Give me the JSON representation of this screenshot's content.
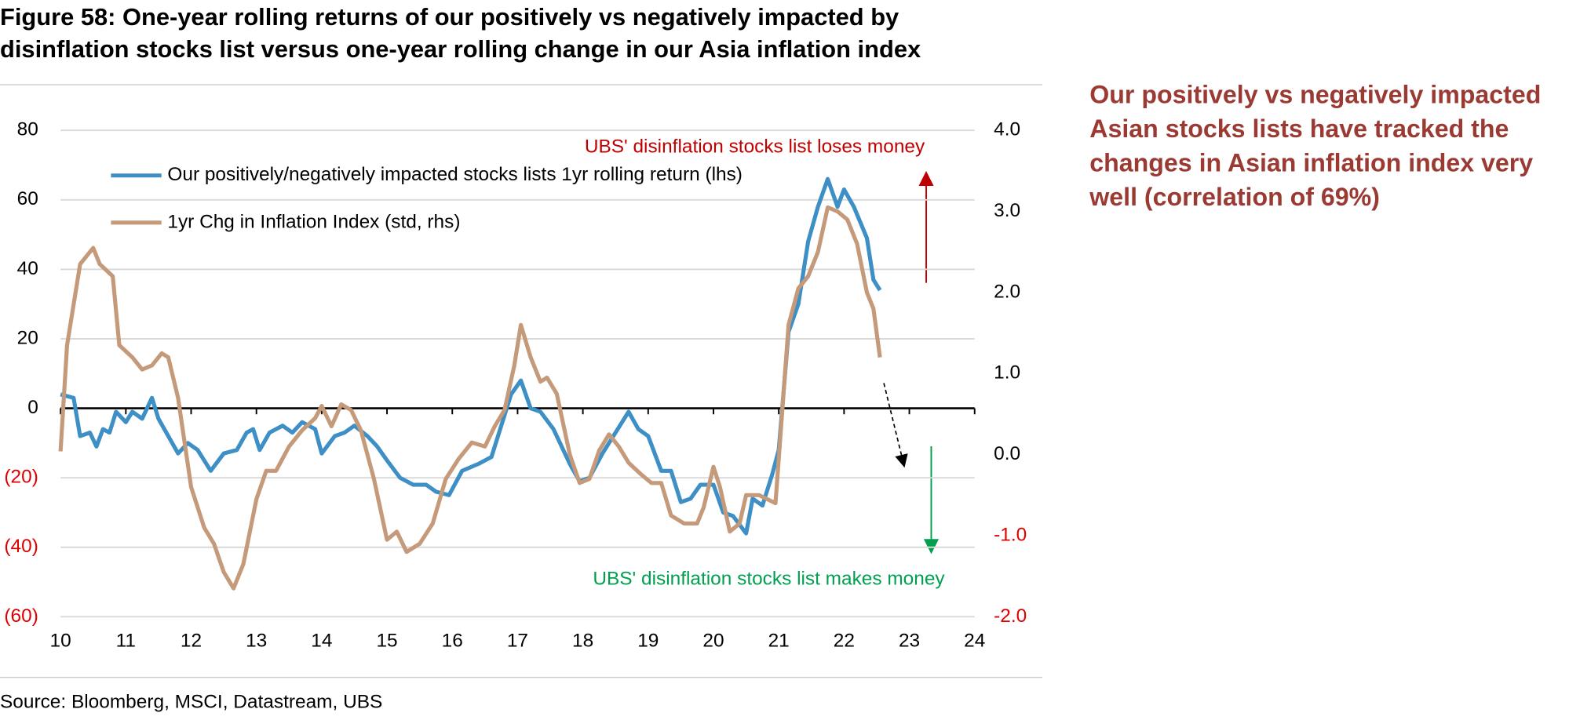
{
  "chart_data": {
    "type": "line",
    "title": [
      "Figure 58: One-year rolling returns of our positively vs negatively impacted by",
      "disinflation stocks list versus one-year rolling change in our Asia inflation index"
    ],
    "source": "Source: Bloomberg, MSCI, Datastream, UBS",
    "xlim": [
      10,
      24
    ],
    "xticks": [
      10,
      11,
      12,
      13,
      14,
      15,
      16,
      17,
      18,
      19,
      20,
      21,
      22,
      23,
      24
    ],
    "ylim": [
      -60,
      80
    ],
    "yticks": [
      {
        "value": -60,
        "label": "(60)"
      },
      {
        "value": -40,
        "label": "(40)"
      },
      {
        "value": -20,
        "label": "(20)"
      },
      0,
      20,
      40,
      60,
      80
    ],
    "y2lim": [
      -2,
      4
    ],
    "y2ticks": [
      {
        "value": -2,
        "label": "-2.0"
      },
      {
        "value": -1,
        "label": "-1.0"
      },
      {
        "value": 0,
        "label": "0.0"
      },
      {
        "value": 1,
        "label": "1.0"
      },
      {
        "value": 2,
        "label": "2.0"
      },
      {
        "value": 3,
        "label": "3.0"
      },
      {
        "value": 4,
        "label": "4.0"
      }
    ],
    "negative_tick_color": "#e00000",
    "grid": true,
    "series": [
      {
        "name": "Our positively/negatively impacted stocks lists 1yr rolling return (lhs)",
        "color": "#3d8fc6",
        "axis": "y",
        "x": [
          10.0,
          10.2,
          10.3,
          10.45,
          10.55,
          10.65,
          10.75,
          10.85,
          11.0,
          11.1,
          11.25,
          11.4,
          11.5,
          11.65,
          11.8,
          11.95,
          12.1,
          12.3,
          12.5,
          12.7,
          12.85,
          12.95,
          13.05,
          13.2,
          13.4,
          13.55,
          13.7,
          13.9,
          14.0,
          14.2,
          14.35,
          14.5,
          14.7,
          14.85,
          15.0,
          15.2,
          15.4,
          15.6,
          15.75,
          15.95,
          16.15,
          16.4,
          16.6,
          16.75,
          16.9,
          17.05,
          17.2,
          17.35,
          17.55,
          17.8,
          17.95,
          18.1,
          18.3,
          18.5,
          18.7,
          18.85,
          19.0,
          19.2,
          19.35,
          19.5,
          19.65,
          19.8,
          20.0,
          20.15,
          20.3,
          20.5,
          20.6,
          20.75,
          20.9,
          21.0,
          21.15,
          21.3,
          21.45,
          21.6,
          21.75,
          21.9,
          22.0,
          22.15,
          22.35,
          22.45,
          22.55
        ],
        "values": [
          4,
          3,
          -8,
          -7,
          -11,
          -6,
          -7,
          -1,
          -4,
          -1,
          -3,
          3,
          -3,
          -8,
          -13,
          -10,
          -12,
          -18,
          -13,
          -12,
          -7,
          -6,
          -12,
          -7,
          -5,
          -7,
          -4,
          -6,
          -13,
          -8,
          -7,
          -5,
          -8,
          -11,
          -15,
          -20,
          -22,
          -22,
          -24,
          -25,
          -18,
          -16,
          -14,
          -5,
          4,
          8,
          0,
          -1,
          -6,
          -16,
          -21,
          -20,
          -13,
          -7,
          -1,
          -6,
          -8,
          -18,
          -18,
          -27,
          -26,
          -22,
          -22,
          -30,
          -31,
          -36,
          -26,
          -28,
          -19,
          -12,
          22,
          30,
          48,
          58,
          66,
          58,
          63,
          58,
          49,
          37,
          34
        ]
      },
      {
        "name": "1yr Chg in Inflation Index (std, rhs)",
        "color": "#c49a7a",
        "axis": "y2",
        "x": [
          10.0,
          10.1,
          10.3,
          10.5,
          10.6,
          10.8,
          10.9,
          11.1,
          11.25,
          11.4,
          11.55,
          11.65,
          11.8,
          12.0,
          12.2,
          12.35,
          12.5,
          12.65,
          12.8,
          13.0,
          13.15,
          13.3,
          13.5,
          13.7,
          13.9,
          14.0,
          14.15,
          14.3,
          14.45,
          14.6,
          14.8,
          15.0,
          15.15,
          15.3,
          15.5,
          15.7,
          15.9,
          16.1,
          16.3,
          16.5,
          16.65,
          16.8,
          16.95,
          17.05,
          17.2,
          17.35,
          17.45,
          17.6,
          17.8,
          17.95,
          18.1,
          18.25,
          18.4,
          18.55,
          18.7,
          18.9,
          19.05,
          19.2,
          19.35,
          19.55,
          19.75,
          19.85,
          20.0,
          20.1,
          20.25,
          20.4,
          20.5,
          20.7,
          20.95,
          21.15,
          21.3,
          21.45,
          21.6,
          21.75,
          21.9,
          22.05,
          22.2,
          22.35,
          22.45,
          22.55
        ],
        "values": [
          0.04,
          1.35,
          2.35,
          2.55,
          2.35,
          2.2,
          1.35,
          1.2,
          1.05,
          1.1,
          1.25,
          1.2,
          0.7,
          -0.4,
          -0.9,
          -1.1,
          -1.45,
          -1.65,
          -1.35,
          -0.55,
          -0.2,
          -0.2,
          0.1,
          0.3,
          0.45,
          0.6,
          0.35,
          0.62,
          0.55,
          0.3,
          -0.3,
          -1.05,
          -0.95,
          -1.2,
          -1.1,
          -0.85,
          -0.3,
          -0.05,
          0.15,
          0.1,
          0.35,
          0.55,
          1.1,
          1.6,
          1.2,
          0.9,
          0.95,
          0.75,
          0.0,
          -0.35,
          -0.3,
          0.05,
          0.25,
          0.1,
          -0.1,
          -0.25,
          -0.35,
          -0.35,
          -0.75,
          -0.85,
          -0.85,
          -0.65,
          -0.15,
          -0.4,
          -0.95,
          -0.85,
          -0.5,
          -0.5,
          -0.6,
          1.6,
          2.05,
          2.2,
          2.5,
          3.05,
          3.0,
          2.9,
          2.6,
          2.0,
          1.8,
          1.2
        ]
      }
    ],
    "annotations": [
      {
        "text": "UBS' disinflation stocks list loses money",
        "color": "#c00000"
      },
      {
        "text": "UBS' disinflation stocks list makes money",
        "color": "#00a050"
      }
    ]
  },
  "commentary": "Our positively vs negatively impacted Asian stocks lists have tracked the changes in Asian inflation index very well (correlation of 69%)"
}
